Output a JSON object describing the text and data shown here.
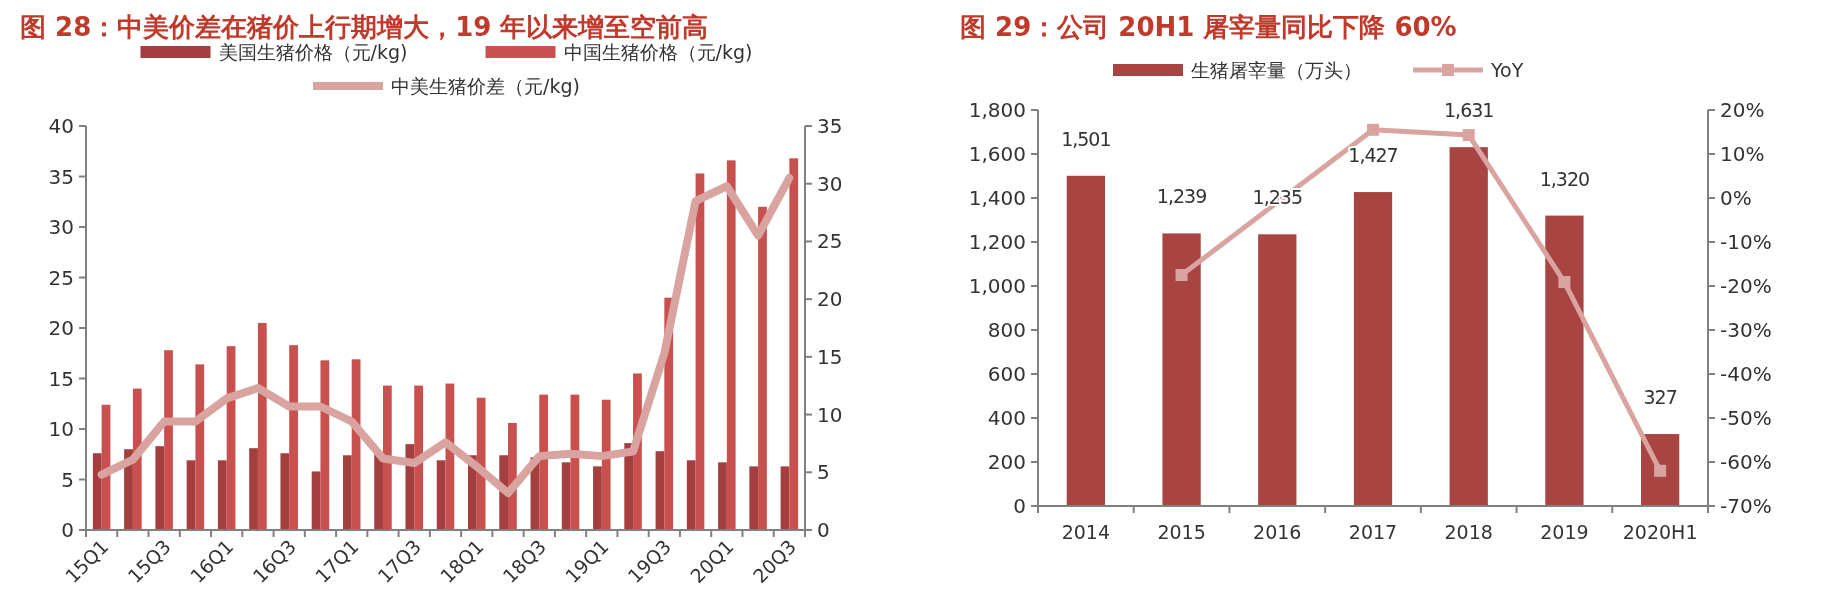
{
  "chart_data": [
    {
      "type": "bar",
      "title": "图 28：中美价差在猪价上行期增大，19 年以来增至空前高",
      "categories": [
        "15Q1",
        null,
        "15Q3",
        null,
        "16Q1",
        null,
        "16Q3",
        null,
        "17Q1",
        null,
        "17Q3",
        null,
        "18Q1",
        null,
        "18Q3",
        null,
        "19Q1",
        null,
        "19Q3",
        null,
        "20Q1",
        null,
        "20Q3"
      ],
      "series": [
        {
          "name": "美国生猪价格（元/kg)",
          "color": "#a33f3f",
          "values": [
            7.6,
            8.0,
            8.3,
            6.9,
            6.9,
            8.1,
            7.6,
            5.8,
            7.4,
            7.5,
            8.5,
            6.9,
            7.4,
            7.4,
            7.2,
            6.7,
            6.3,
            8.6,
            7.8,
            6.9,
            6.7,
            6.3,
            6.3
          ]
        },
        {
          "name": "中国生猪价格（元/kg)",
          "color": "#c8504f",
          "values": [
            12.4,
            14.0,
            17.8,
            16.4,
            18.2,
            20.5,
            18.3,
            16.8,
            16.9,
            14.3,
            14.3,
            14.5,
            13.1,
            10.6,
            13.4,
            13.4,
            12.9,
            15.5,
            23.0,
            35.3,
            36.6,
            32.0,
            36.8
          ]
        },
        {
          "name": "中美生猪价差（元/kg)",
          "color": "#d9a3a0",
          "type": "line",
          "axis": "y2",
          "values": [
            4.8,
            6.1,
            9.4,
            9.4,
            11.4,
            12.3,
            10.7,
            10.7,
            9.4,
            6.2,
            5.8,
            7.6,
            5.5,
            3.2,
            6.4,
            6.6,
            6.4,
            6.8,
            15.3,
            28.5,
            29.8,
            25.5,
            30.5
          ]
        }
      ],
      "ylim": [
        0,
        40
      ],
      "yticks": [
        0,
        5,
        10,
        15,
        20,
        25,
        30,
        35,
        40
      ],
      "y2lim": [
        0,
        35
      ],
      "y2ticks": [
        0,
        5,
        10,
        15,
        20,
        25,
        30,
        35
      ],
      "legend": "top"
    },
    {
      "type": "bar",
      "title": "图 29：公司 20H1 屠宰量同比下降 60%",
      "categories": [
        "2014",
        "2015",
        "2016",
        "2017",
        "2018",
        "2019",
        "2020H1"
      ],
      "series": [
        {
          "name": "生猪屠宰量（万头）",
          "color": "#a84442",
          "values": [
            1501,
            1239,
            1235,
            1427,
            1631,
            1320,
            327
          ]
        },
        {
          "name": "YoY",
          "color": "#d9a3a0",
          "type": "line",
          "axis": "y2",
          "values": [
            null,
            -17.5,
            null,
            15.5,
            14.3,
            -19.1,
            -62
          ]
        }
      ],
      "ylim": [
        0,
        1800
      ],
      "yticks": [
        0,
        {
          "value": 200,
          "label": "200"
        },
        {
          "value": 400,
          "label": "400"
        },
        {
          "value": 600,
          "label": "600"
        },
        {
          "value": 800,
          "label": "800"
        },
        {
          "value": 1000,
          "label": "1,000"
        },
        {
          "value": 1200,
          "label": "1,200"
        },
        {
          "value": 1400,
          "label": "1,400"
        },
        {
          "value": 1600,
          "label": "1,600"
        },
        {
          "value": 1800,
          "label": "1,800"
        }
      ],
      "y2lim": [
        -70,
        20
      ],
      "y2ticks": [
        {
          "value": -70,
          "label": "-70%"
        },
        {
          "value": -60,
          "label": "-60%"
        },
        {
          "value": -50,
          "label": "-50%"
        },
        {
          "value": -40,
          "label": "-40%"
        },
        {
          "value": -30,
          "label": "-30%"
        },
        {
          "value": -20,
          "label": "-20%"
        },
        {
          "value": -10,
          "label": "-10%"
        },
        {
          "value": 0,
          "label": "0%"
        },
        {
          "value": 10,
          "label": "10%"
        },
        {
          "value": 20,
          "label": "20%"
        }
      ],
      "value_labels": [
        "1,501",
        "1,239",
        "1,235",
        "1,427",
        "1,631",
        "1,320",
        "327"
      ],
      "marker": "square",
      "legend": "top"
    }
  ]
}
